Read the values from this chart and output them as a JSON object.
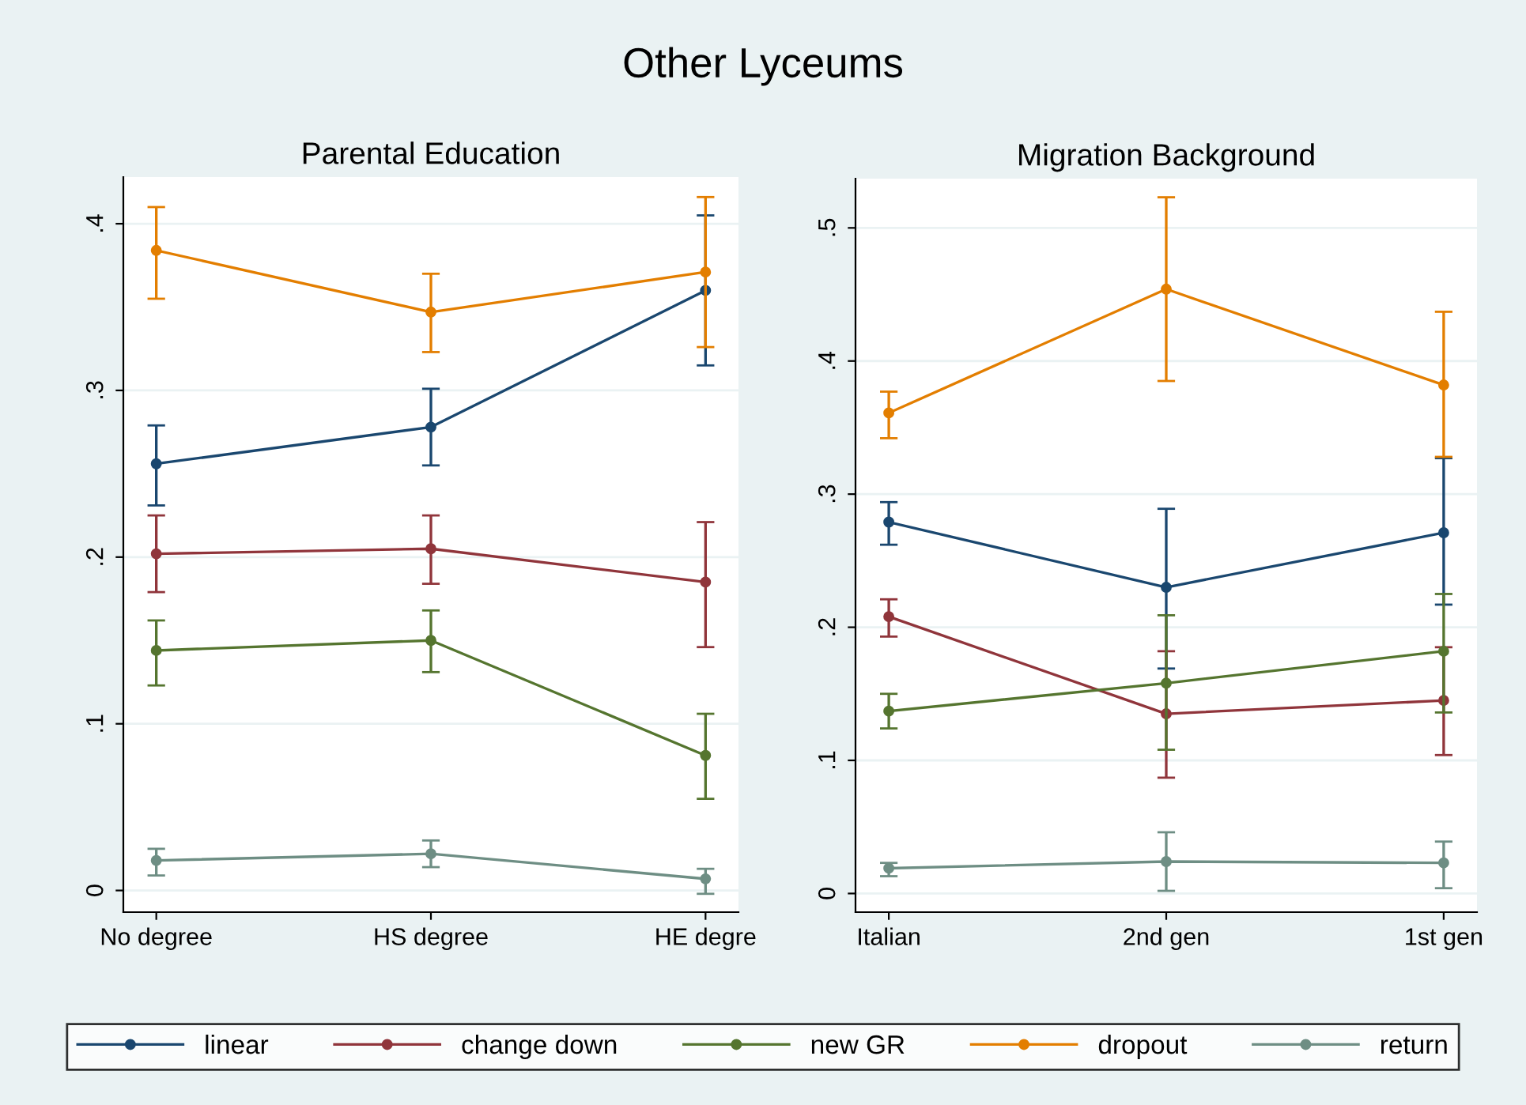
{
  "chart_data": [
    {
      "type": "line",
      "title": "Other Lyceums",
      "subtitle": "Parental Education",
      "categories": [
        "No degree",
        "HS degree",
        "HE degre"
      ],
      "ylim": [
        -0.013,
        0.428
      ],
      "yticks": [
        {
          "value": 0,
          "label": "0"
        },
        {
          "value": 0.1,
          "label": ".1"
        },
        {
          "value": 0.2,
          "label": ".2"
        },
        {
          "value": 0.3,
          "label": ".3"
        },
        {
          "value": 0.4,
          "label": ".4"
        }
      ],
      "grid": "y",
      "marker": "circle",
      "line_style": "solid",
      "legend": "bottom",
      "series": [
        {
          "name": "linear",
          "color": "#1a476f",
          "values": [
            0.256,
            0.278,
            0.36
          ],
          "errors": [
            [
              0.231,
              0.279
            ],
            [
              0.255,
              0.301
            ],
            [
              0.315,
              0.405
            ]
          ]
        },
        {
          "name": "change down",
          "color": "#90353b",
          "values": [
            0.202,
            0.205,
            0.185
          ],
          "errors": [
            [
              0.179,
              0.225
            ],
            [
              0.184,
              0.225
            ],
            [
              0.146,
              0.221
            ]
          ]
        },
        {
          "name": "new GR",
          "color": "#55752f",
          "values": [
            0.144,
            0.15,
            0.081
          ],
          "errors": [
            [
              0.123,
              0.162
            ],
            [
              0.131,
              0.168
            ],
            [
              0.055,
              0.106
            ]
          ]
        },
        {
          "name": "dropout",
          "color": "#e37e00",
          "values": [
            0.384,
            0.347,
            0.371
          ],
          "errors": [
            [
              0.355,
              0.41
            ],
            [
              0.323,
              0.37
            ],
            [
              0.326,
              0.416
            ]
          ]
        },
        {
          "name": "return",
          "color": "#6e8e84",
          "values": [
            0.018,
            0.022,
            0.007
          ],
          "errors": [
            [
              0.009,
              0.025
            ],
            [
              0.014,
              0.03
            ],
            [
              -0.002,
              0.013
            ]
          ]
        }
      ]
    },
    {
      "type": "line",
      "subtitle": "Migration Background",
      "categories": [
        "Italian",
        "2nd gen",
        "1st gen"
      ],
      "ylim": [
        -0.014,
        0.537
      ],
      "yticks": [
        {
          "value": 0,
          "label": "0"
        },
        {
          "value": 0.1,
          "label": ".1"
        },
        {
          "value": 0.2,
          "label": ".2"
        },
        {
          "value": 0.3,
          "label": ".3"
        },
        {
          "value": 0.4,
          "label": ".4"
        },
        {
          "value": 0.5,
          "label": ".5"
        }
      ],
      "grid": "y",
      "marker": "circle",
      "line_style": "solid",
      "series": [
        {
          "name": "linear",
          "color": "#1a476f",
          "values": [
            0.279,
            0.23,
            0.271
          ],
          "errors": [
            [
              0.262,
              0.294
            ],
            [
              0.169,
              0.289
            ],
            [
              0.217,
              0.327
            ]
          ]
        },
        {
          "name": "change down",
          "color": "#90353b",
          "values": [
            0.208,
            0.135,
            0.145
          ],
          "errors": [
            [
              0.193,
              0.221
            ],
            [
              0.087,
              0.182
            ],
            [
              0.104,
              0.185
            ]
          ]
        },
        {
          "name": "new GR",
          "color": "#55752f",
          "values": [
            0.137,
            0.158,
            0.182
          ],
          "errors": [
            [
              0.124,
              0.15
            ],
            [
              0.108,
              0.209
            ],
            [
              0.136,
              0.225
            ]
          ]
        },
        {
          "name": "dropout",
          "color": "#e37e00",
          "values": [
            0.361,
            0.454,
            0.382
          ],
          "errors": [
            [
              0.342,
              0.377
            ],
            [
              0.385,
              0.523
            ],
            [
              0.328,
              0.437
            ]
          ]
        },
        {
          "name": "return",
          "color": "#6e8e84",
          "values": [
            0.019,
            0.024,
            0.023
          ],
          "errors": [
            [
              0.013,
              0.023
            ],
            [
              0.002,
              0.046
            ],
            [
              0.004,
              0.039
            ]
          ]
        }
      ]
    }
  ]
}
